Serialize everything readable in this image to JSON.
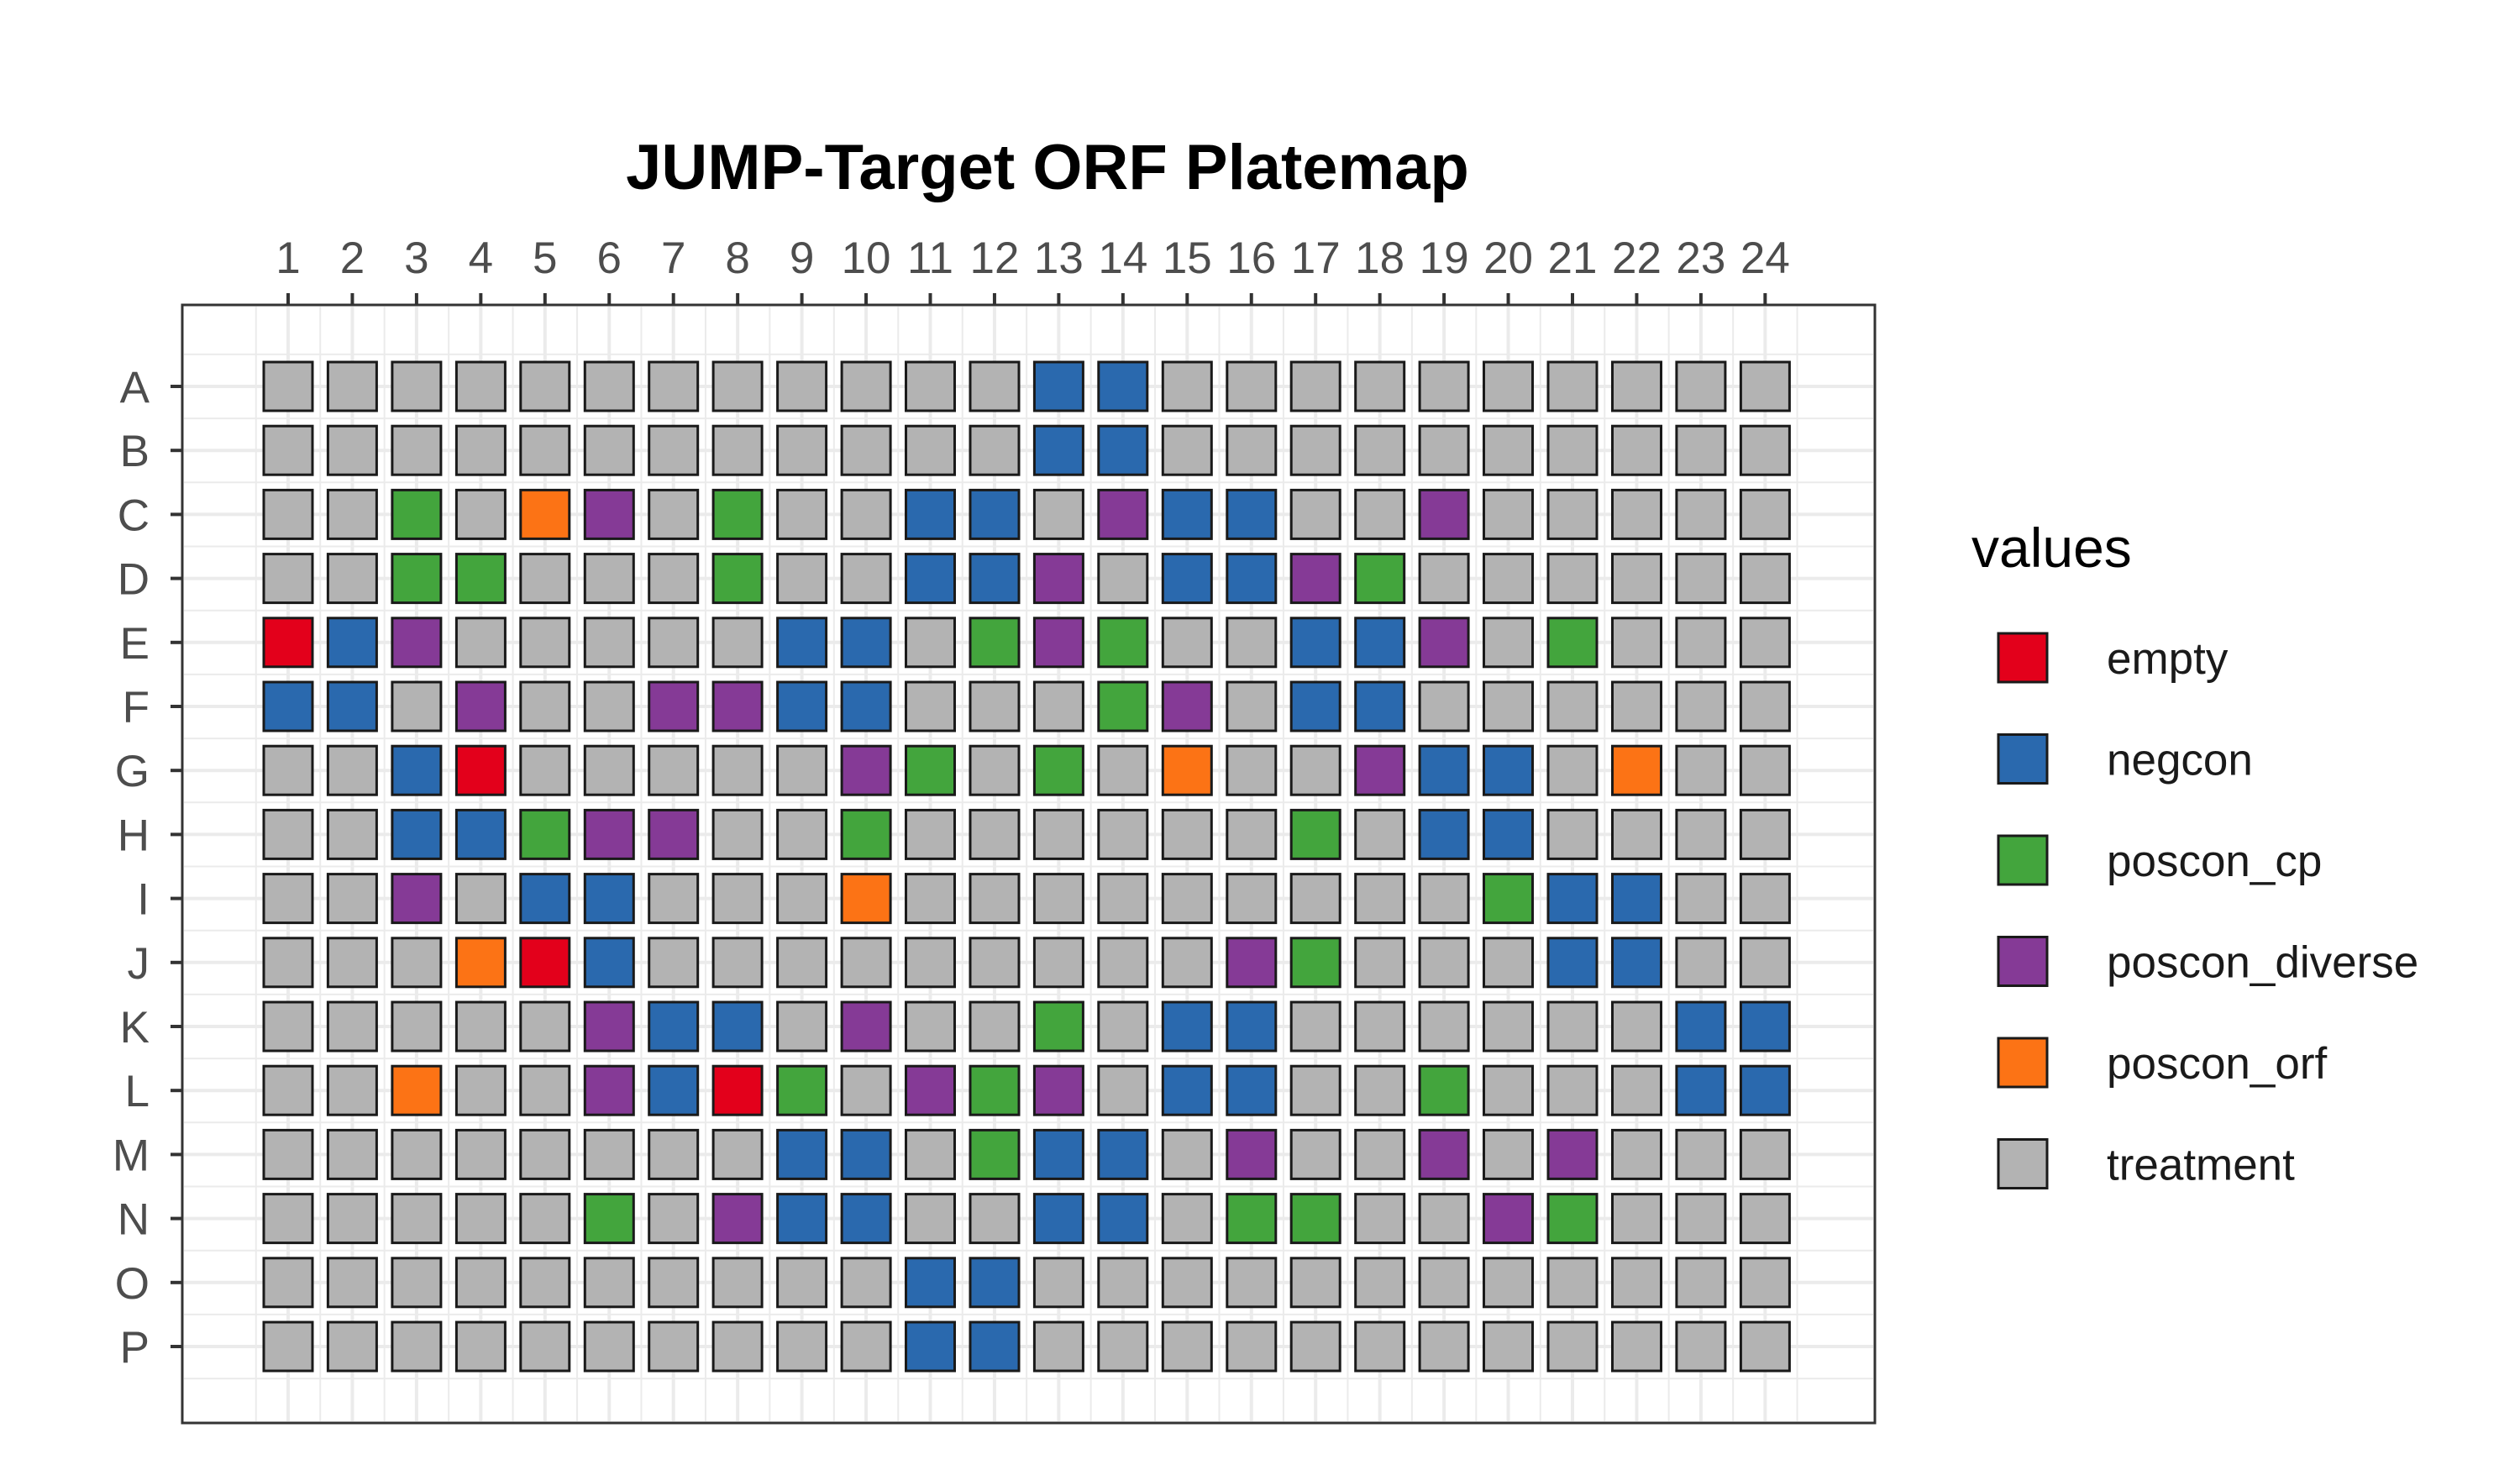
{
  "chart_data": {
    "type": "heatmap",
    "title": "JUMP-Target ORF Platemap",
    "xlabel": "",
    "ylabel": "",
    "columns": [
      "1",
      "2",
      "3",
      "4",
      "5",
      "6",
      "7",
      "8",
      "9",
      "10",
      "11",
      "12",
      "13",
      "14",
      "15",
      "16",
      "17",
      "18",
      "19",
      "20",
      "21",
      "22",
      "23",
      "24"
    ],
    "rows": [
      "A",
      "B",
      "C",
      "D",
      "E",
      "F",
      "G",
      "H",
      "I",
      "J",
      "K",
      "L",
      "M",
      "N",
      "O",
      "P"
    ],
    "x_axis_position": "top",
    "grid": true,
    "legend": {
      "title": "values",
      "position": "right",
      "categories": [
        {
          "name": "empty",
          "color": "#e3001b"
        },
        {
          "name": "negcon",
          "color": "#2a69ae"
        },
        {
          "name": "poscon_cp",
          "color": "#43a53d"
        },
        {
          "name": "poscon_diverse",
          "color": "#853a96"
        },
        {
          "name": "poscon_orf",
          "color": "#fc7315"
        },
        {
          "name": "treatment",
          "color": "#b3b3b3"
        }
      ]
    },
    "wells": {
      "A": [
        "treatment",
        "treatment",
        "treatment",
        "treatment",
        "treatment",
        "treatment",
        "treatment",
        "treatment",
        "treatment",
        "treatment",
        "treatment",
        "treatment",
        "negcon",
        "negcon",
        "treatment",
        "treatment",
        "treatment",
        "treatment",
        "treatment",
        "treatment",
        "treatment",
        "treatment",
        "treatment",
        "treatment"
      ],
      "B": [
        "treatment",
        "treatment",
        "treatment",
        "treatment",
        "treatment",
        "treatment",
        "treatment",
        "treatment",
        "treatment",
        "treatment",
        "treatment",
        "treatment",
        "negcon",
        "negcon",
        "treatment",
        "treatment",
        "treatment",
        "treatment",
        "treatment",
        "treatment",
        "treatment",
        "treatment",
        "treatment",
        "treatment"
      ],
      "C": [
        "treatment",
        "treatment",
        "poscon_cp",
        "treatment",
        "poscon_orf",
        "poscon_diverse",
        "treatment",
        "poscon_cp",
        "treatment",
        "treatment",
        "negcon",
        "negcon",
        "treatment",
        "poscon_diverse",
        "negcon",
        "negcon",
        "treatment",
        "treatment",
        "poscon_diverse",
        "treatment",
        "treatment",
        "treatment",
        "treatment",
        "treatment"
      ],
      "D": [
        "treatment",
        "treatment",
        "poscon_cp",
        "poscon_cp",
        "treatment",
        "treatment",
        "treatment",
        "poscon_cp",
        "treatment",
        "treatment",
        "negcon",
        "negcon",
        "poscon_diverse",
        "treatment",
        "negcon",
        "negcon",
        "poscon_diverse",
        "poscon_cp",
        "treatment",
        "treatment",
        "treatment",
        "treatment",
        "treatment",
        "treatment"
      ],
      "E": [
        "empty",
        "negcon",
        "poscon_diverse",
        "treatment",
        "treatment",
        "treatment",
        "treatment",
        "treatment",
        "negcon",
        "negcon",
        "treatment",
        "poscon_cp",
        "poscon_diverse",
        "poscon_cp",
        "treatment",
        "treatment",
        "negcon",
        "negcon",
        "poscon_diverse",
        "treatment",
        "poscon_cp",
        "treatment",
        "treatment",
        "treatment"
      ],
      "F": [
        "negcon",
        "negcon",
        "treatment",
        "poscon_diverse",
        "treatment",
        "treatment",
        "poscon_diverse",
        "poscon_diverse",
        "negcon",
        "negcon",
        "treatment",
        "treatment",
        "treatment",
        "poscon_cp",
        "poscon_diverse",
        "treatment",
        "negcon",
        "negcon",
        "treatment",
        "treatment",
        "treatment",
        "treatment",
        "treatment",
        "treatment"
      ],
      "G": [
        "treatment",
        "treatment",
        "negcon",
        "empty",
        "treatment",
        "treatment",
        "treatment",
        "treatment",
        "treatment",
        "poscon_diverse",
        "poscon_cp",
        "treatment",
        "poscon_cp",
        "treatment",
        "poscon_orf",
        "treatment",
        "treatment",
        "poscon_diverse",
        "negcon",
        "negcon",
        "treatment",
        "poscon_orf",
        "treatment",
        "treatment"
      ],
      "H": [
        "treatment",
        "treatment",
        "negcon",
        "negcon",
        "poscon_cp",
        "poscon_diverse",
        "poscon_diverse",
        "treatment",
        "treatment",
        "poscon_cp",
        "treatment",
        "treatment",
        "treatment",
        "treatment",
        "treatment",
        "treatment",
        "poscon_cp",
        "treatment",
        "negcon",
        "negcon",
        "treatment",
        "treatment",
        "treatment",
        "treatment"
      ],
      "I": [
        "treatment",
        "treatment",
        "poscon_diverse",
        "treatment",
        "negcon",
        "negcon",
        "treatment",
        "treatment",
        "treatment",
        "poscon_orf",
        "treatment",
        "treatment",
        "treatment",
        "treatment",
        "treatment",
        "treatment",
        "treatment",
        "treatment",
        "treatment",
        "poscon_cp",
        "negcon",
        "negcon",
        "treatment",
        "treatment"
      ],
      "J": [
        "treatment",
        "treatment",
        "treatment",
        "poscon_orf",
        "empty",
        "negcon",
        "treatment",
        "treatment",
        "treatment",
        "treatment",
        "treatment",
        "treatment",
        "treatment",
        "treatment",
        "treatment",
        "poscon_diverse",
        "poscon_cp",
        "treatment",
        "treatment",
        "treatment",
        "negcon",
        "negcon",
        "treatment",
        "treatment"
      ],
      "K": [
        "treatment",
        "treatment",
        "treatment",
        "treatment",
        "treatment",
        "poscon_diverse",
        "negcon",
        "negcon",
        "treatment",
        "poscon_diverse",
        "treatment",
        "treatment",
        "poscon_cp",
        "treatment",
        "negcon",
        "negcon",
        "treatment",
        "treatment",
        "treatment",
        "treatment",
        "treatment",
        "treatment",
        "negcon",
        "negcon"
      ],
      "L": [
        "treatment",
        "treatment",
        "poscon_orf",
        "treatment",
        "treatment",
        "poscon_diverse",
        "negcon",
        "empty",
        "poscon_cp",
        "treatment",
        "poscon_diverse",
        "poscon_cp",
        "poscon_diverse",
        "treatment",
        "negcon",
        "negcon",
        "treatment",
        "treatment",
        "poscon_cp",
        "treatment",
        "treatment",
        "treatment",
        "negcon",
        "negcon"
      ],
      "M": [
        "treatment",
        "treatment",
        "treatment",
        "treatment",
        "treatment",
        "treatment",
        "treatment",
        "treatment",
        "negcon",
        "negcon",
        "treatment",
        "poscon_cp",
        "negcon",
        "negcon",
        "treatment",
        "poscon_diverse",
        "treatment",
        "treatment",
        "poscon_diverse",
        "treatment",
        "poscon_diverse",
        "treatment",
        "treatment",
        "treatment"
      ],
      "N": [
        "treatment",
        "treatment",
        "treatment",
        "treatment",
        "treatment",
        "poscon_cp",
        "treatment",
        "poscon_diverse",
        "negcon",
        "negcon",
        "treatment",
        "treatment",
        "negcon",
        "negcon",
        "treatment",
        "poscon_cp",
        "poscon_cp",
        "treatment",
        "treatment",
        "poscon_diverse",
        "poscon_cp",
        "treatment",
        "treatment",
        "treatment"
      ],
      "O": [
        "treatment",
        "treatment",
        "treatment",
        "treatment",
        "treatment",
        "treatment",
        "treatment",
        "treatment",
        "treatment",
        "treatment",
        "negcon",
        "negcon",
        "treatment",
        "treatment",
        "treatment",
        "treatment",
        "treatment",
        "treatment",
        "treatment",
        "treatment",
        "treatment",
        "treatment",
        "treatment",
        "treatment"
      ],
      "P": [
        "treatment",
        "treatment",
        "treatment",
        "treatment",
        "treatment",
        "treatment",
        "treatment",
        "treatment",
        "treatment",
        "treatment",
        "negcon",
        "negcon",
        "treatment",
        "treatment",
        "treatment",
        "treatment",
        "treatment",
        "treatment",
        "treatment",
        "treatment",
        "treatment",
        "treatment",
        "treatment",
        "treatment"
      ]
    }
  }
}
